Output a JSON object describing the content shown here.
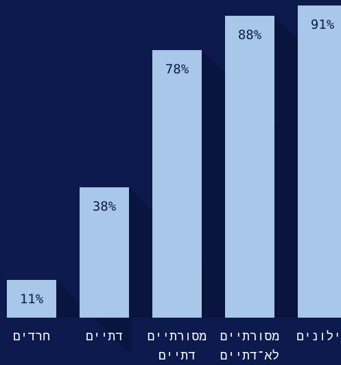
{
  "chart_data": {
    "type": "bar",
    "categories": [
      "חרדים",
      "דתיים",
      "מסורתיים דתיים",
      "מסורתיים לא־דתיים",
      "חילונים"
    ],
    "category_lines": [
      [
        "חרדים"
      ],
      [
        "דתיים"
      ],
      [
        "מסורתיים",
        "דתיים"
      ],
      [
        "מסורתיים",
        "לא־דתיים"
      ],
      [
        "חילונים"
      ]
    ],
    "values": [
      11,
      38,
      78,
      88,
      91
    ],
    "value_labels": [
      "11%",
      "38%",
      "78%",
      "88%",
      "91%"
    ],
    "ylim": [
      0,
      100
    ],
    "grid": false,
    "legend": "none",
    "colors": {
      "background": "#0c1a4d",
      "bar": "#a9c7e8",
      "shadow": "#071034",
      "value_text": "#0c1a4d",
      "label_text": "#ffffff"
    }
  }
}
